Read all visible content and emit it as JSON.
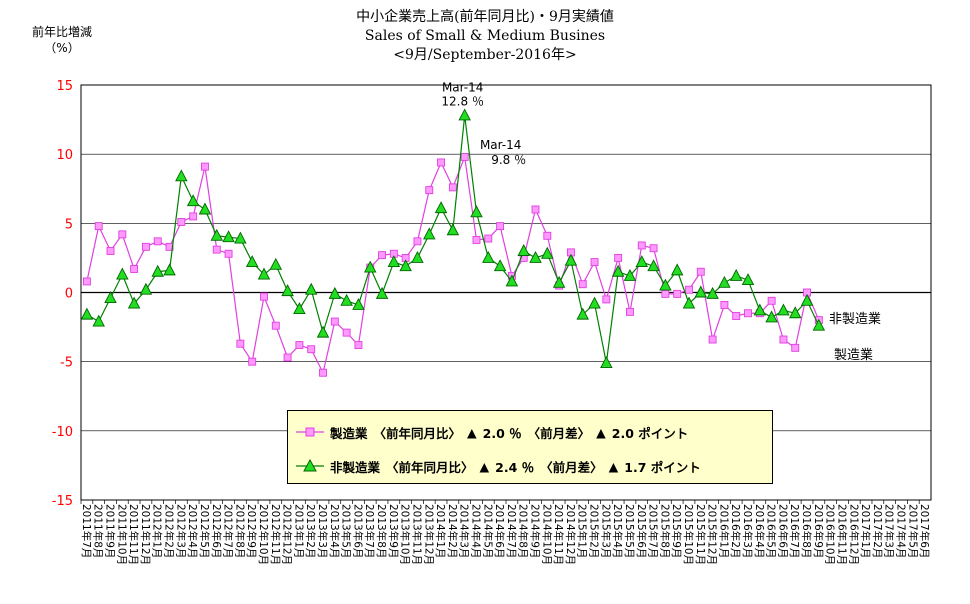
{
  "title": {
    "line1": "中小企業売上高(前年同月比)・9月実績値",
    "line2": "Sales of Small & Medium Busines",
    "line3": "<9月/September-2016年>"
  },
  "y_axis_label_line1": "前年比増減",
  "y_axis_label_line2": "（%）",
  "legend": {
    "manufacturing": {
      "name": "製造業",
      "yoy_label": "〈前年同月比〉",
      "yoy_marker": "▲",
      "yoy_value": "2.0 ％",
      "mom_label": "〈前月差〉",
      "mom_marker": "▲",
      "mom_value": "2.0 ポイント"
    },
    "non_manufacturing": {
      "name": "非製造業",
      "yoy_label": "〈前年同月比〉",
      "yoy_marker": "▲",
      "yoy_value": "2.4 ％",
      "mom_label": "〈前月差〉",
      "mom_marker": "▲",
      "mom_value": "1.7 ポイント"
    }
  },
  "series_end_labels": {
    "non_manufacturing": "非製造業",
    "manufacturing": "製造業"
  },
  "annotations": [
    {
      "series": "non_manufacturing",
      "month": "Mar-14",
      "value_text": "12.8 ％"
    },
    {
      "series": "manufacturing",
      "month": "Mar-14",
      "value_text": "9.8 ％"
    }
  ],
  "colors": {
    "manufacturing_line": "#e040e0",
    "manufacturing_marker": "#ff99ff",
    "non_manufacturing_line": "#008000",
    "non_manufacturing_marker": "#22dd22",
    "gridline": "#000000",
    "legend_bg": "#ffffcc",
    "axis_label": "#ff0000"
  },
  "chart_data": {
    "type": "line",
    "title": "中小企業売上高(前年同月比)・9月実績値",
    "ylim": [
      -15,
      15
    ],
    "yticks": [
      -15,
      -10,
      -5,
      0,
      5,
      10,
      15
    ],
    "grid": "horizontal",
    "legend_position": "bottom-center",
    "categories": [
      "2011年7月",
      "2011年8月",
      "2011年9月",
      "2011年10月",
      "2011年11月",
      "2011年12月",
      "2012年1月",
      "2012年2月",
      "2012年3月",
      "2012年4月",
      "2012年5月",
      "2012年6月",
      "2012年7月",
      "2012年8月",
      "2012年9月",
      "2012年10月",
      "2012年11月",
      "2012年12月",
      "2013年1月",
      "2013年2月",
      "2013年3月",
      "2013年4月",
      "2013年5月",
      "2013年6月",
      "2013年7月",
      "2013年8月",
      "2013年9月",
      "2013年10月",
      "2013年11月",
      "2013年12月",
      "2014年1月",
      "2014年2月",
      "2014年3月",
      "2014年4月",
      "2014年5月",
      "2014年6月",
      "2014年7月",
      "2014年8月",
      "2014年9月",
      "2014年10月",
      "2014年11月",
      "2014年12月",
      "2015年1月",
      "2015年2月",
      "2015年3月",
      "2015年4月",
      "2015年5月",
      "2015年6月",
      "2015年7月",
      "2015年8月",
      "2015年9月",
      "2015年10月",
      "2015年11月",
      "2015年12月",
      "2016年1月",
      "2016年2月",
      "2016年3月",
      "2016年4月",
      "2016年5月",
      "2016年6月",
      "2016年7月",
      "2016年8月",
      "2016年9月",
      "2016年10月",
      "2016年11月",
      "2016年12月",
      "2017年1月",
      "2017年2月",
      "2017年3月",
      "2017年4月",
      "2017年5月",
      "2017年6月"
    ],
    "series": [
      {
        "name": "製造業",
        "marker": "square",
        "values": [
          0.8,
          4.8,
          3.0,
          4.2,
          1.7,
          3.3,
          3.7,
          3.3,
          5.1,
          5.5,
          9.1,
          3.1,
          2.8,
          -3.7,
          -5.0,
          -0.3,
          -2.4,
          -4.7,
          -3.8,
          -4.1,
          -5.8,
          -2.1,
          -2.9,
          -3.8,
          1.8,
          2.7,
          2.8,
          2.5,
          3.7,
          7.4,
          9.4,
          7.6,
          9.8,
          3.8,
          3.9,
          4.8,
          1.2,
          2.5,
          6.0,
          4.1,
          0.5,
          2.9,
          0.6,
          2.2,
          -0.5,
          2.5,
          -1.4,
          3.4,
          3.2,
          -0.1,
          -0.1,
          0.2,
          1.5,
          -3.4,
          -0.9,
          -1.7,
          -1.5,
          -1.5,
          -0.6,
          -3.4,
          -4.0,
          0.0,
          -2.0,
          null,
          null,
          null,
          null,
          null,
          null,
          null,
          null,
          null
        ]
      },
      {
        "name": "非製造業",
        "marker": "triangle",
        "values": [
          -1.6,
          -2.1,
          -0.4,
          1.3,
          -0.8,
          0.2,
          1.5,
          1.6,
          8.4,
          6.6,
          6.0,
          4.1,
          4.0,
          3.9,
          2.2,
          1.3,
          2.0,
          0.1,
          -1.2,
          0.2,
          -2.9,
          -0.1,
          -0.6,
          -0.9,
          1.8,
          -0.1,
          2.2,
          1.9,
          2.5,
          4.2,
          6.1,
          4.5,
          12.8,
          5.8,
          2.5,
          1.9,
          0.8,
          3.0,
          2.5,
          2.8,
          0.7,
          2.3,
          -1.6,
          -0.8,
          -5.1,
          1.5,
          1.2,
          2.2,
          1.9,
          0.5,
          1.6,
          -0.8,
          0.0,
          -0.1,
          0.7,
          1.2,
          0.9,
          -1.3,
          -1.8,
          -1.3,
          -1.5,
          -0.6,
          -2.4,
          null,
          null,
          null,
          null,
          null,
          null,
          null,
          null,
          null
        ]
      }
    ]
  }
}
